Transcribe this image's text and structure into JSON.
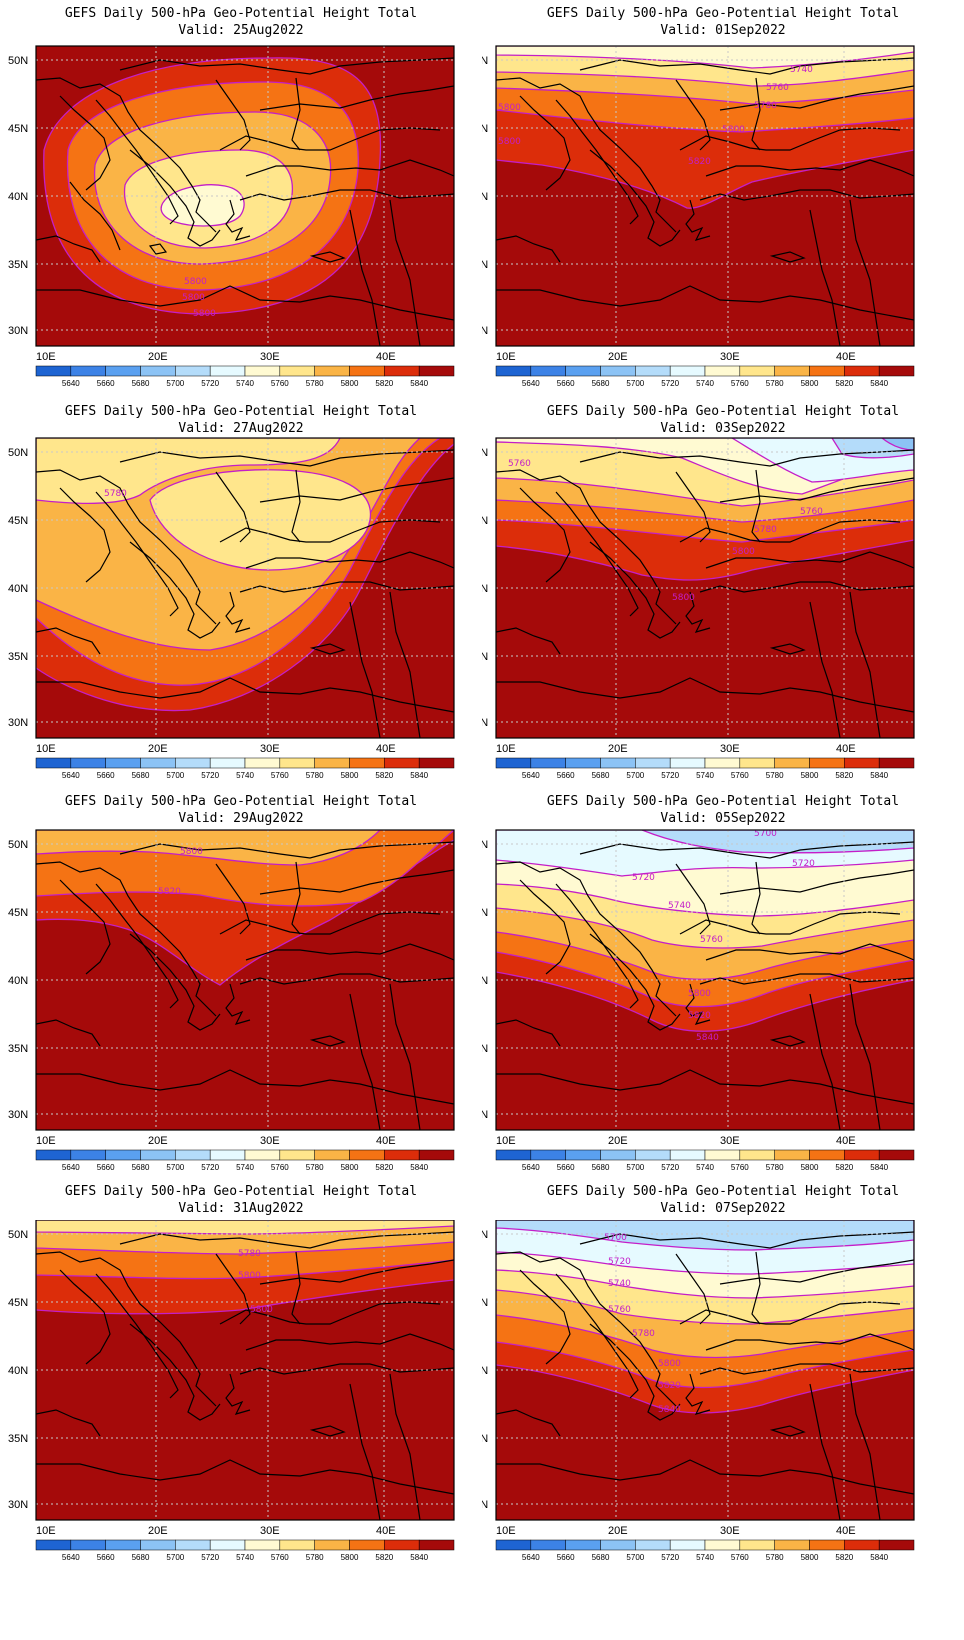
{
  "figure": {
    "panel_title": "GEFS Daily 500-hPa Geo-Potential Height Total",
    "valid_prefix": "Valid:",
    "lat_ticks": [
      "50N",
      "45N",
      "40N",
      "35N",
      "30N"
    ],
    "lon_ticks": [
      "10E",
      "20E",
      "30E",
      "40E"
    ],
    "colorbar": {
      "levels": [
        "5640",
        "5660",
        "5680",
        "5700",
        "5720",
        "5740",
        "5760",
        "5780",
        "5800",
        "5820",
        "5840"
      ],
      "colors": [
        "#1e64d2",
        "#3c82e6",
        "#5aa0f0",
        "#8cc3f5",
        "#b4dcfa",
        "#e6faff",
        "#fffad2",
        "#ffe68c",
        "#fab446",
        "#f57314",
        "#dc2d0a",
        "#a50a0a"
      ]
    },
    "contour_color": "#c41ec8",
    "coastline_color": "#000000"
  },
  "panels": [
    {
      "valid": "25Aug2022",
      "labels": [
        "5800",
        "5800",
        "5800"
      ]
    },
    {
      "valid": "01Sep2022",
      "labels": [
        "5740",
        "5760",
        "5780",
        "5800",
        "5820",
        "5800",
        "5800"
      ]
    },
    {
      "valid": "27Aug2022",
      "labels": [
        "5780"
      ]
    },
    {
      "valid": "03Sep2022",
      "labels": [
        "5760",
        "5760",
        "5780",
        "5800",
        "5800"
      ]
    },
    {
      "valid": "29Aug2022",
      "labels": [
        "5800",
        "5820"
      ]
    },
    {
      "valid": "05Sep2022",
      "labels": [
        "5700",
        "5720",
        "5720",
        "5740",
        "5760",
        "5800",
        "5820",
        "5840"
      ]
    },
    {
      "valid": "31Aug2022",
      "labels": [
        "5780",
        "5800",
        "5800"
      ]
    },
    {
      "valid": "07Sep2022",
      "labels": [
        "5700",
        "5720",
        "5740",
        "5760",
        "5780",
        "5800",
        "5820",
        "5840"
      ]
    }
  ]
}
